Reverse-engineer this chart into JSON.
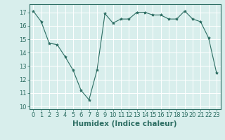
{
  "x": [
    0,
    1,
    2,
    3,
    4,
    5,
    6,
    7,
    8,
    9,
    10,
    11,
    12,
    13,
    14,
    15,
    16,
    17,
    18,
    19,
    20,
    21,
    22,
    23
  ],
  "y": [
    17.1,
    16.3,
    14.7,
    14.6,
    13.7,
    12.7,
    11.2,
    10.5,
    12.7,
    16.9,
    16.2,
    16.5,
    16.5,
    17.0,
    17.0,
    16.8,
    16.8,
    16.5,
    16.5,
    17.1,
    16.5,
    16.3,
    15.1,
    12.5
  ],
  "line_color": "#2d6e63",
  "marker": "*",
  "marker_size": 3,
  "bg_color": "#d8eeec",
  "grid_color": "#ffffff",
  "xlabel": "Humidex (Indice chaleur)",
  "xlim": [
    -0.5,
    23.5
  ],
  "ylim": [
    9.8,
    17.6
  ],
  "yticks": [
    10,
    11,
    12,
    13,
    14,
    15,
    16,
    17
  ],
  "xticks": [
    0,
    1,
    2,
    3,
    4,
    5,
    6,
    7,
    8,
    9,
    10,
    11,
    12,
    13,
    14,
    15,
    16,
    17,
    18,
    19,
    20,
    21,
    22,
    23
  ],
  "tick_fontsize": 6,
  "xlabel_fontsize": 7.5
}
